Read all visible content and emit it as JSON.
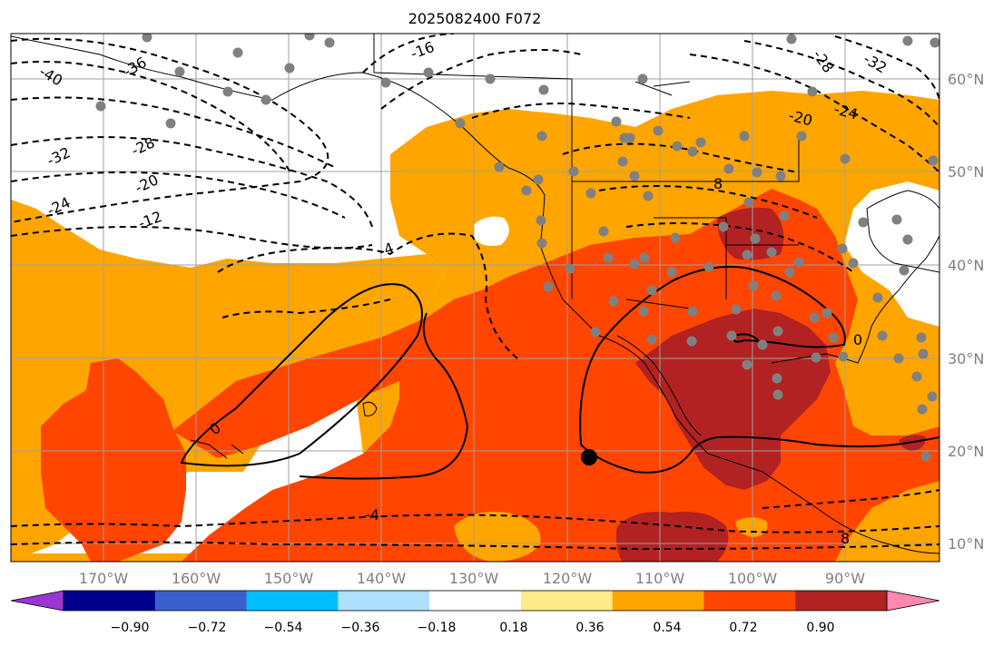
{
  "title": "2025082400 F072",
  "latitude_labels": [
    "60°N",
    "50°N",
    "40°N",
    "30°N",
    "20°N",
    "10°N"
  ],
  "longitude_labels": [
    "170°W",
    "160°W",
    "150°W",
    "140°W",
    "130°W",
    "120°W",
    "110°W",
    "100°W",
    "90°W"
  ],
  "colorbar": {
    "ticks": [
      "−0.90",
      "−0.72",
      "−0.54",
      "−0.36",
      "−0.18",
      "0.18",
      "0.36",
      "0.54",
      "0.72",
      "0.90"
    ],
    "colors": [
      "#9a35d4",
      "#00008b",
      "#3a5fcd",
      "#00bfff",
      "#b0e0ff",
      "#ffffff",
      "#ffeb8a",
      "#ffa500",
      "#ff4500",
      "#b22222",
      "#ff88b0"
    ]
  },
  "contour_labels": [
    "-40",
    "-36",
    "-32",
    "-28",
    "-24",
    "-20",
    "-12",
    "-16",
    "-4",
    "0",
    "0",
    "-4",
    "8",
    "-20",
    "-24",
    "-32",
    "-28",
    "8"
  ],
  "colors": {
    "orange": "#ffa500",
    "red_orange": "#ff4500",
    "dark_red": "#b22222",
    "station": "#808080",
    "grid": "#a0a0a0"
  }
}
